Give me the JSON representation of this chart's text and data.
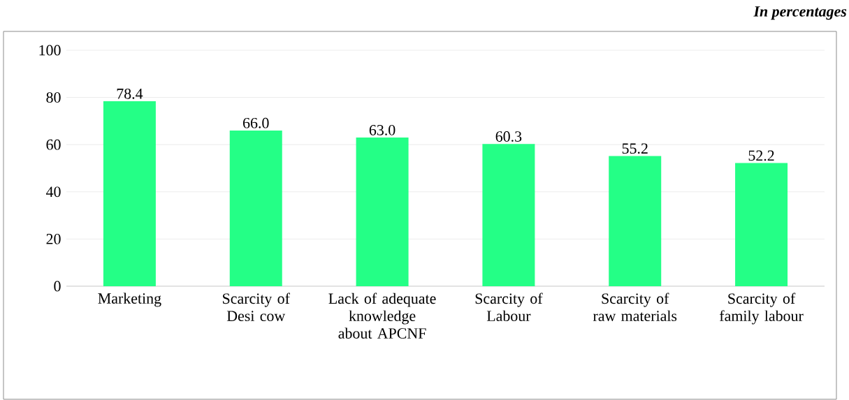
{
  "chart_data": {
    "type": "bar",
    "categories": [
      "Marketing",
      "Scarcity of Desi cow",
      "Lack of adequate knowledge about APCNF",
      "Scarcity of Labour",
      "Scarcity of raw materials",
      "Scarcity of family labour"
    ],
    "values": [
      78.4,
      66.0,
      63.0,
      60.3,
      55.2,
      52.2
    ],
    "color": "#24ff86",
    "ylim": [
      0,
      100
    ],
    "yticks": [
      0,
      20,
      40,
      60,
      80,
      100
    ],
    "value_labels": [
      "78.4",
      "66.0",
      "63.0",
      "60.3",
      "55.2",
      "52.2"
    ],
    "grid": "y",
    "annotations": [
      "In percentages"
    ]
  }
}
